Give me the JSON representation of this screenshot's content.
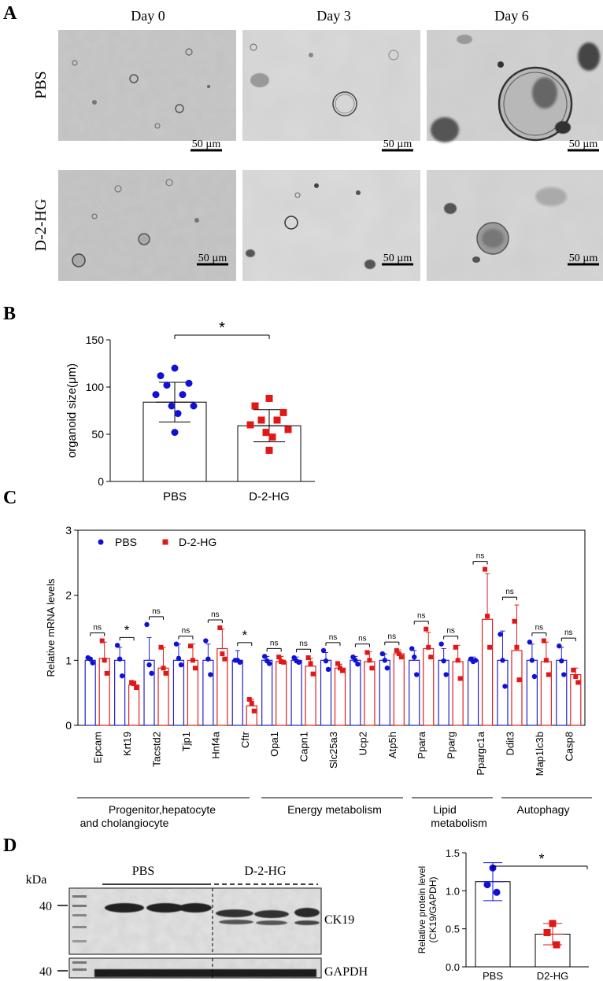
{
  "panels": {
    "A": {
      "label": "A",
      "day_labels": [
        "Day 0",
        "Day 3",
        "Day 6"
      ],
      "row_labels": [
        "PBS",
        "D-2-HG"
      ],
      "scale_bar_label": "50 µm"
    },
    "B": {
      "label": "B"
    },
    "C": {
      "label": "C",
      "group_labels": [
        "Progenitor,hepatocyte",
        "and cholangiocyte",
        "Energy metabolism",
        "Lipid",
        "metabolism",
        "Autophagy"
      ]
    },
    "D": {
      "label": "D",
      "blot": {
        "kda_label": "kDa",
        "marker_ck19": "40",
        "marker_gapdh": "40",
        "group_pbs": "PBS",
        "group_d2hg": "D-2-HG",
        "band_ck19": "CK19",
        "band_gapdh": "GAPDH"
      }
    }
  },
  "colors": {
    "pbs": "#1010d8",
    "d2hg": "#e01818",
    "bar_pbs": "#2222cc",
    "bar_d2hg": "#e02020"
  },
  "chart_data": [
    {
      "id": "B",
      "type": "bar",
      "categories": [
        "PBS",
        "D-2-HG"
      ],
      "values": [
        84,
        59
      ],
      "errors": [
        21,
        17
      ],
      "points": [
        [
          120,
          112,
          104,
          102,
          92,
          92,
          80,
          80,
          72,
          52
        ],
        [
          88,
          80,
          73,
          65,
          65,
          60,
          55,
          52,
          47,
          33
        ]
      ],
      "ylabel": "organoid size(μm)",
      "ylim": [
        0,
        150
      ],
      "yticks": [
        0,
        50,
        100,
        150
      ],
      "significance": "*"
    },
    {
      "id": "C",
      "type": "bar",
      "categories": [
        "Epcam",
        "Krt19",
        "Tacstd2",
        "Tjp1",
        "Hnf4a",
        "Cftr",
        "Opa1",
        "Capn1",
        "Slc25a3",
        "Ucp2",
        "Atp5h",
        "Ppara",
        "Pparg",
        "Ppargc1a",
        "Ddit3",
        "Map1lc3b",
        "Casp8"
      ],
      "series": [
        {
          "name": "PBS",
          "values": [
            1.0,
            1.0,
            1.0,
            1.0,
            1.0,
            1.0,
            1.0,
            1.0,
            1.0,
            1.0,
            1.0,
            1.0,
            1.0,
            1.0,
            1.0,
            1.0,
            1.0
          ],
          "errors": [
            0.04,
            0.2,
            0.35,
            0.25,
            0.25,
            0.15,
            0.06,
            0.05,
            0.12,
            0.06,
            0.1,
            0.15,
            0.18,
            0.05,
            0.45,
            0.25,
            0.2
          ],
          "points": [
            [
              1.04,
              1.02,
              0.96
            ],
            [
              1.23,
              1.02,
              0.76
            ],
            [
              1.55,
              0.93,
              0.8
            ],
            [
              1.25,
              1.03,
              0.93
            ],
            [
              1.3,
              1.02,
              0.78
            ],
            [
              1.0,
              1.0,
              0.97
            ],
            [
              1.06,
              0.99,
              0.95
            ],
            [
              1.04,
              0.99,
              0.97
            ],
            [
              1.15,
              0.99,
              0.86
            ],
            [
              1.05,
              1.0,
              0.94
            ],
            [
              1.1,
              1.0,
              0.88
            ],
            [
              1.18,
              1.05,
              0.78
            ],
            [
              1.25,
              0.99,
              0.78
            ],
            [
              1.02,
              0.98,
              1.0
            ],
            [
              1.4,
              1.0,
              0.6
            ],
            [
              1.28,
              1.0,
              0.75
            ],
            [
              1.22,
              0.99,
              0.78
            ]
          ]
        },
        {
          "name": "D-2-HG",
          "values": [
            1.03,
            0.62,
            0.88,
            1.0,
            1.18,
            0.3,
            0.98,
            0.91,
            0.88,
            0.98,
            1.1,
            1.18,
            0.98,
            1.63,
            1.15,
            0.98,
            0.78
          ],
          "errors": [
            0.25,
            0.06,
            0.32,
            0.25,
            0.3,
            0.1,
            0.08,
            0.12,
            0.06,
            0.15,
            0.06,
            0.25,
            0.25,
            0.7,
            0.7,
            0.3,
            0.1
          ],
          "points": [
            [
              1.3,
              1.0,
              0.8
            ],
            [
              0.66,
              0.64,
              0.58
            ],
            [
              1.2,
              0.88,
              0.8
            ],
            [
              1.22,
              1.0,
              0.88
            ],
            [
              1.5,
              1.1,
              1.02
            ],
            [
              0.4,
              0.34,
              0.22
            ],
            [
              1.05,
              0.98,
              0.97
            ],
            [
              1.04,
              0.95,
              0.79
            ],
            [
              0.95,
              0.88,
              0.84
            ],
            [
              1.12,
              1.0,
              0.88
            ],
            [
              1.15,
              1.1,
              1.05
            ],
            [
              1.48,
              1.2,
              1.05
            ],
            [
              1.2,
              1.0,
              0.72
            ],
            [
              2.4,
              1.68,
              1.2
            ],
            [
              1.6,
              1.2,
              0.7
            ],
            [
              1.3,
              1.0,
              0.78
            ],
            [
              0.85,
              0.75,
              0.66
            ]
          ]
        }
      ],
      "significance": [
        "ns",
        "*",
        "ns",
        "ns",
        "ns",
        "*",
        "ns",
        "ns",
        "ns",
        "ns",
        "ns",
        "ns",
        "ns",
        "ns",
        "ns",
        "ns",
        "ns"
      ],
      "ylabel": "Relative mRNA levels",
      "ylim": [
        0,
        3
      ],
      "yticks": [
        0,
        1,
        2,
        3
      ],
      "legend": "top-left"
    },
    {
      "id": "D",
      "type": "bar",
      "categories": [
        "PBS",
        "D2-HG"
      ],
      "values": [
        1.12,
        0.43
      ],
      "errors": [
        0.25,
        0.14
      ],
      "points": [
        [
          1.3,
          1.08,
          0.98
        ],
        [
          0.57,
          0.45,
          0.29
        ]
      ],
      "ylabel": "Relative protein level\n(CK19/GAPDH)",
      "ylim": [
        0,
        1.5
      ],
      "yticks": [
        0.0,
        0.5,
        1.0,
        1.5
      ],
      "significance": "*"
    }
  ]
}
